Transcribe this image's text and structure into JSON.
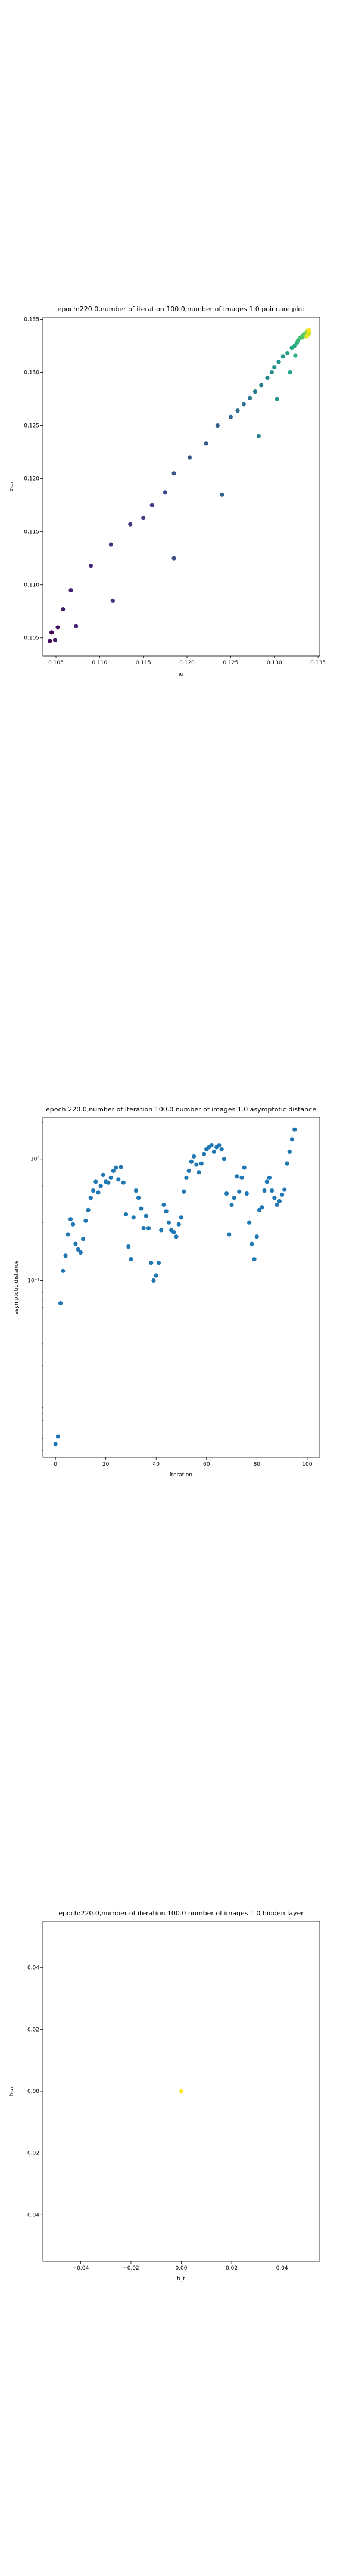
{
  "chart_data": [
    {
      "type": "scatter",
      "title": "epoch:220.0,number of iteration 100.0,number of images 1.0 poincare plot",
      "xlabel": "xₜ",
      "ylabel": "xₜ₊₁",
      "xlim": [
        0.1035,
        0.1352
      ],
      "ylim": [
        0.1033,
        0.1352
      ],
      "xticks": [
        0.105,
        0.11,
        0.115,
        0.12,
        0.125,
        0.13,
        0.135
      ],
      "xtick_labels": [
        "0.105",
        "0.110",
        "0.115",
        "0.120",
        "0.125",
        "0.130",
        "0.135"
      ],
      "yticks": [
        0.105,
        0.11,
        0.115,
        0.12,
        0.125,
        0.13,
        0.135
      ],
      "ytick_labels": [
        "0.105",
        "0.110",
        "0.115",
        "0.120",
        "0.125",
        "0.130",
        "0.135"
      ],
      "colormap": "viridis (color encodes iteration order)",
      "points": [
        [
          0.1045,
          0.1055
        ],
        [
          0.1043,
          0.1047
        ],
        [
          0.1052,
          0.106
        ],
        [
          0.1049,
          0.1048
        ],
        [
          0.1058,
          0.1077
        ],
        [
          0.1067,
          0.1095
        ],
        [
          0.1073,
          0.1061
        ],
        [
          0.109,
          0.1118
        ],
        [
          0.1113,
          0.1138
        ],
        [
          0.1115,
          0.1085
        ],
        [
          0.1135,
          0.1157
        ],
        [
          0.115,
          0.1163
        ],
        [
          0.116,
          0.1175
        ],
        [
          0.1175,
          0.1187
        ],
        [
          0.1185,
          0.1125
        ],
        [
          0.1185,
          0.1205
        ],
        [
          0.1203,
          0.122
        ],
        [
          0.1222,
          0.1233
        ],
        [
          0.1235,
          0.125
        ],
        [
          0.124,
          0.1185
        ],
        [
          0.125,
          0.1258
        ],
        [
          0.1258,
          0.1264
        ],
        [
          0.1265,
          0.127
        ],
        [
          0.1272,
          0.1276
        ],
        [
          0.1278,
          0.1282
        ],
        [
          0.1282,
          0.124
        ],
        [
          0.1285,
          0.1288
        ],
        [
          0.1292,
          0.1295
        ],
        [
          0.1297,
          0.13
        ],
        [
          0.13,
          0.1305
        ],
        [
          0.1305,
          0.131
        ],
        [
          0.1303,
          0.1275
        ],
        [
          0.131,
          0.1315
        ],
        [
          0.1315,
          0.1318
        ],
        [
          0.1318,
          0.13
        ],
        [
          0.132,
          0.1323
        ],
        [
          0.1323,
          0.1325
        ],
        [
          0.1324,
          0.1316
        ],
        [
          0.1326,
          0.1328
        ],
        [
          0.1327,
          0.133
        ],
        [
          0.1329,
          0.1332
        ],
        [
          0.133,
          0.1333
        ],
        [
          0.1332,
          0.1333
        ],
        [
          0.1333,
          0.1335
        ],
        [
          0.1334,
          0.1336
        ],
        [
          0.1336,
          0.1337
        ],
        [
          0.1336,
          0.1334
        ],
        [
          0.1337,
          0.1338
        ],
        [
          0.1338,
          0.1337
        ],
        [
          0.1338,
          0.1339
        ],
        [
          0.1339,
          0.1339
        ],
        [
          0.1339,
          0.1338
        ],
        [
          0.134,
          0.1339
        ],
        [
          0.134,
          0.1338
        ],
        [
          0.134,
          0.1337
        ],
        [
          0.1339,
          0.1336
        ],
        [
          0.1338,
          0.1335
        ],
        [
          0.1337,
          0.1334
        ],
        [
          0.134,
          0.134
        ],
        [
          0.1339,
          0.134
        ]
      ]
    },
    {
      "type": "scatter",
      "title": "epoch:220.0,number of iteration 100.0  number of images 1.0 asymptotic distance",
      "xlabel": "iteration",
      "ylabel": "asymptotic distance",
      "xlim": [
        -5,
        105
      ],
      "yscale": "log",
      "ylim": [
        0.0035,
        2.2
      ],
      "xticks": [
        0,
        20,
        40,
        60,
        80,
        100
      ],
      "xtick_labels": [
        "0",
        "20",
        "40",
        "60",
        "80",
        "100"
      ],
      "yticks": [
        1.0,
        0.1
      ],
      "ytick_labels": [
        "10⁰",
        "10⁻¹"
      ],
      "color": "#1f77b4",
      "values": [
        0.0045,
        0.0052,
        0.065,
        0.12,
        0.16,
        0.24,
        0.32,
        0.29,
        0.2,
        0.18,
        0.17,
        0.22,
        0.31,
        0.38,
        0.48,
        0.55,
        0.65,
        0.53,
        0.6,
        0.74,
        0.65,
        0.64,
        0.7,
        0.8,
        0.85,
        0.68,
        0.86,
        0.64,
        0.35,
        0.19,
        0.15,
        0.33,
        0.55,
        0.48,
        0.39,
        0.27,
        0.34,
        0.27,
        0.14,
        0.1,
        0.11,
        0.14,
        0.26,
        0.42,
        0.37,
        0.3,
        0.26,
        0.25,
        0.23,
        0.29,
        0.33,
        0.54,
        0.7,
        0.8,
        0.95,
        1.05,
        0.9,
        0.78,
        0.92,
        1.1,
        1.2,
        1.25,
        1.3,
        1.15,
        1.25,
        1.3,
        1.2,
        1.0,
        0.52,
        0.24,
        0.42,
        0.48,
        0.72,
        0.54,
        0.7,
        0.85,
        0.52,
        0.3,
        0.2,
        0.15,
        0.23,
        0.38,
        0.4,
        0.55,
        0.65,
        0.7,
        0.55,
        0.48,
        0.42,
        0.45,
        0.51,
        0.56,
        0.92,
        1.15,
        1.45,
        1.75
      ]
    },
    {
      "type": "scatter",
      "title": "epoch:220.0,number of iteration 100.0  number of images 1.0 hidden layer",
      "xlabel": "h_t",
      "ylabel": "hₜ₊₁",
      "xlim": [
        -0.055,
        0.055
      ],
      "ylim": [
        -0.055,
        0.055
      ],
      "xticks": [
        -0.04,
        -0.02,
        0.0,
        0.02,
        0.04
      ],
      "xtick_labels": [
        "−0.04",
        "−0.02",
        "0.00",
        "0.02",
        "0.04"
      ],
      "yticks": [
        -0.04,
        -0.02,
        0.0,
        0.02,
        0.04
      ],
      "ytick_labels": [
        "−0.04",
        "−0.02",
        "0.00",
        "0.02",
        "0.04"
      ],
      "color": "#fde725",
      "points": [
        [
          0.0,
          0.0
        ]
      ]
    }
  ]
}
